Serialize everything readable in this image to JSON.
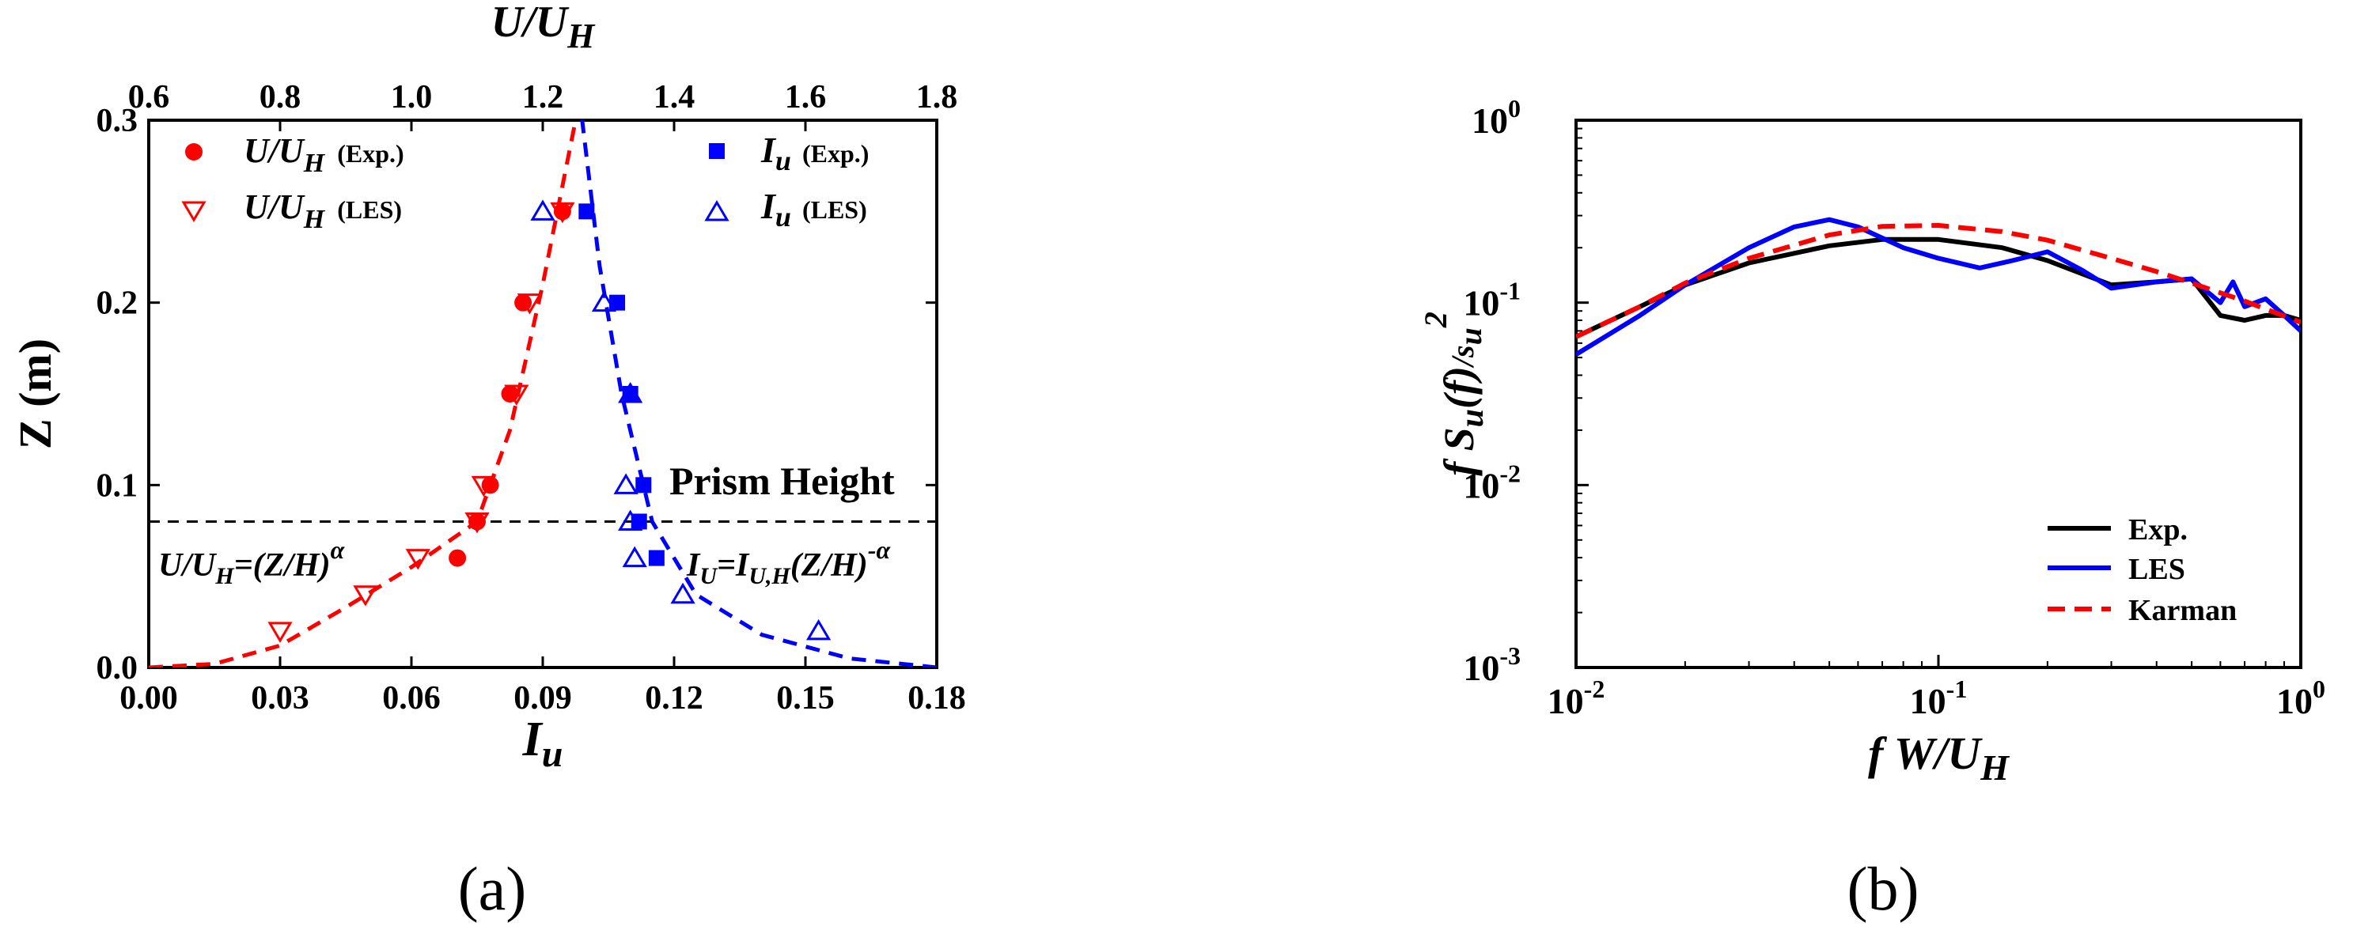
{
  "chart_data": [
    {
      "panel": "(a)",
      "type": "scatter",
      "xlabel": "I",
      "xlabel_sub": "u",
      "top_xlabel": "U/U",
      "top_xlabel_sub": "H",
      "ylabel": "Z (m)",
      "xlim": [
        0.0,
        0.18
      ],
      "ylim": [
        0.0,
        0.3
      ],
      "top_xlim": [
        0.6,
        1.8
      ],
      "x_ticks": [
        "0.00",
        "0.03",
        "0.06",
        "0.09",
        "0.12",
        "0.15",
        "0.18"
      ],
      "top_x_ticks": [
        "0.6",
        "0.8",
        "1.0",
        "1.2",
        "1.4",
        "1.6",
        "1.8"
      ],
      "y_ticks": [
        "0.0",
        "0.1",
        "0.2",
        "0.3"
      ],
      "legend_position": "top",
      "series": [
        {
          "name": "U/U_H (Exp.)",
          "axis": "top",
          "marker": "filled-circle",
          "color": "#ff0000",
          "x": [
            1.07,
            1.1,
            1.12,
            1.15,
            1.17,
            1.23
          ],
          "y": [
            0.06,
            0.08,
            0.1,
            0.15,
            0.2,
            0.25
          ]
        },
        {
          "name": "U/U_H (LES)",
          "axis": "top",
          "marker": "open-triangle-down",
          "color": "#ff0000",
          "x": [
            0.8,
            0.93,
            1.01,
            1.1,
            1.11,
            1.16,
            1.18,
            1.23
          ],
          "y": [
            0.02,
            0.04,
            0.06,
            0.08,
            0.1,
            0.15,
            0.2,
            0.25
          ]
        },
        {
          "name": "I_u (Exp.)",
          "axis": "bottom",
          "marker": "filled-square",
          "color": "#0000ff",
          "x": [
            0.116,
            0.112,
            0.113,
            0.11,
            0.107,
            0.1
          ],
          "y": [
            0.06,
            0.08,
            0.1,
            0.15,
            0.2,
            0.25
          ]
        },
        {
          "name": "I_u (LES)",
          "axis": "bottom",
          "marker": "open-triangle-up",
          "color": "#0000ff",
          "x": [
            0.153,
            0.122,
            0.111,
            0.11,
            0.109,
            0.11,
            0.104,
            0.09
          ],
          "y": [
            0.02,
            0.04,
            0.06,
            0.08,
            0.1,
            0.15,
            0.2,
            0.25
          ]
        }
      ],
      "fit_lines": [
        {
          "axis": "top",
          "color": "#ff0000",
          "style": "dashed",
          "x": [
            0.6,
            0.7,
            0.8,
            0.9,
            1.0,
            1.1,
            1.15,
            1.2,
            1.25
          ],
          "y": [
            0.0,
            0.002,
            0.012,
            0.033,
            0.055,
            0.08,
            0.13,
            0.21,
            0.3
          ]
        },
        {
          "axis": "bottom",
          "color": "#0000ff",
          "style": "dashed",
          "x": [
            0.18,
            0.16,
            0.14,
            0.125,
            0.115,
            0.108,
            0.103,
            0.099
          ],
          "y": [
            0.0,
            0.005,
            0.018,
            0.04,
            0.08,
            0.15,
            0.22,
            0.3
          ]
        }
      ],
      "reference_line": {
        "y": 0.08,
        "label": "Prism Height"
      },
      "equations": {
        "left_main": "U/U",
        "left_sub": "H",
        "left_rest": "=(Z/H)",
        "left_sup": "α",
        "right_main": "I",
        "right_sub1": "U",
        "right_mid": "=I",
        "right_sub2": "U,H",
        "right_rest": "(Z/H)",
        "right_sup": "-α"
      },
      "legend_exp": "(Exp.)",
      "legend_les": "(LES)",
      "legend_u": "U/U",
      "legend_u_sub": "H",
      "legend_i": "I",
      "legend_i_sub": "u"
    },
    {
      "panel": "(b)",
      "type": "line",
      "x_scale": "log",
      "y_scale": "log",
      "xlim": [
        0.01,
        1.0
      ],
      "ylim": [
        0.001,
        1.0
      ],
      "xlabel": "f W/U",
      "xlabel_sub": "H",
      "ylabel": "f S",
      "ylabel_sub": "u",
      "ylabel_mid": "(f)",
      "ylabel_div": "/s",
      "ylabel_div_sub": "u",
      "ylabel_sup": "2",
      "x_ticks": [
        {
          "base": "10",
          "exp": "-2"
        },
        {
          "base": "10",
          "exp": "-1"
        },
        {
          "base": "10",
          "exp": "0"
        }
      ],
      "y_ticks": [
        {
          "base": "10",
          "exp": "-3"
        },
        {
          "base": "10",
          "exp": "-2"
        },
        {
          "base": "10",
          "exp": "-1"
        },
        {
          "base": "10",
          "exp": "0"
        }
      ],
      "legend_position": "bottom-right",
      "series": [
        {
          "name": "Exp.",
          "color": "#000000",
          "style": "solid",
          "x": [
            0.01,
            0.015,
            0.02,
            0.03,
            0.05,
            0.07,
            0.1,
            0.15,
            0.2,
            0.3,
            0.4,
            0.5,
            0.6,
            0.7,
            0.8,
            0.9,
            1.0
          ],
          "y": [
            0.065,
            0.095,
            0.125,
            0.165,
            0.205,
            0.222,
            0.222,
            0.2,
            0.17,
            0.125,
            0.13,
            0.135,
            0.085,
            0.08,
            0.085,
            0.085,
            0.08
          ]
        },
        {
          "name": "LES",
          "color": "#0000ff",
          "style": "solid",
          "x": [
            0.01,
            0.015,
            0.02,
            0.03,
            0.04,
            0.05,
            0.06,
            0.08,
            0.1,
            0.13,
            0.16,
            0.2,
            0.25,
            0.3,
            0.4,
            0.5,
            0.6,
            0.65,
            0.7,
            0.8,
            0.9,
            1.0
          ],
          "y": [
            0.052,
            0.085,
            0.125,
            0.2,
            0.26,
            0.285,
            0.26,
            0.2,
            0.175,
            0.155,
            0.17,
            0.19,
            0.15,
            0.12,
            0.13,
            0.135,
            0.1,
            0.13,
            0.095,
            0.105,
            0.085,
            0.07
          ]
        },
        {
          "name": "Karman",
          "color": "#ff0000",
          "style": "dashed",
          "x": [
            0.01,
            0.015,
            0.02,
            0.03,
            0.05,
            0.07,
            0.1,
            0.15,
            0.2,
            0.3,
            0.4,
            0.5,
            0.7,
            1.0
          ],
          "y": [
            0.065,
            0.095,
            0.128,
            0.175,
            0.235,
            0.262,
            0.265,
            0.245,
            0.22,
            0.175,
            0.148,
            0.128,
            0.102,
            0.078
          ]
        }
      ]
    }
  ],
  "captions": {
    "a": "(a)",
    "b": "(b)"
  }
}
